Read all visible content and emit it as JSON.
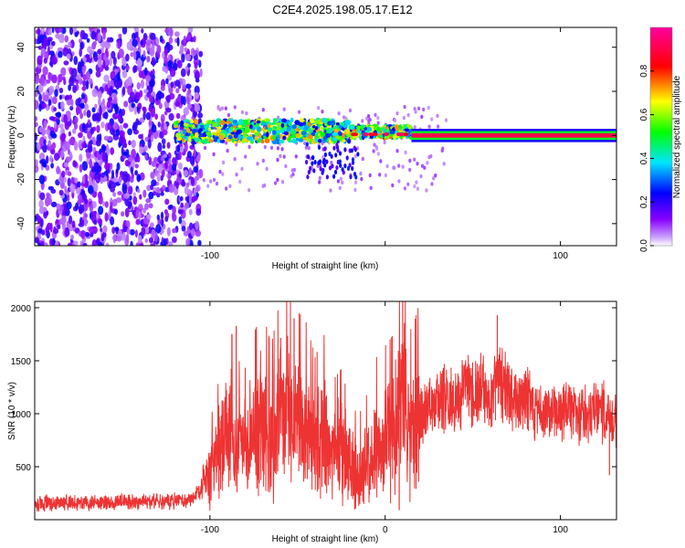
{
  "figure": {
    "title": "C2E4.2025.198.05.17.E12"
  },
  "chart_data": [
    {
      "type": "heatmap",
      "title": "C2E4.2025.198.05.17.E12",
      "xlabel": "Height of straight line (km)",
      "ylabel": "Frequency (Hz)",
      "xlim": [
        -200,
        132
      ],
      "ylim": [
        -50,
        49
      ],
      "xticks": [
        -100,
        0,
        100
      ],
      "xtick_labels": [
        "-100",
        "",
        "100"
      ],
      "yticks": [
        -40,
        -20,
        0,
        20,
        40
      ],
      "ytick_labels": [
        "-40",
        "-20",
        "0",
        "20",
        "40"
      ],
      "colorbar": {
        "label": "Normalized spectral amplitude",
        "range": [
          0,
          1
        ],
        "ticks": [
          0,
          0.2,
          0.4,
          0.6,
          0.8
        ],
        "tick_labels": [
          "0.0",
          "0.2",
          "0.4",
          "0.6",
          "0.8"
        ],
        "colormap": [
          "#ffffff",
          "#8a00ff",
          "#0000ff",
          "#00e5ff",
          "#00ff00",
          "#ffff00",
          "#ff0000",
          "#ff00a0"
        ]
      },
      "regions": [
        {
          "name": "noise",
          "x": [
            -200,
            -105
          ],
          "y": [
            -50,
            49
          ],
          "amplitude": [
            0.05,
            0.25
          ]
        },
        {
          "name": "signal band",
          "x": [
            -120,
            15
          ],
          "y": [
            -4,
            6
          ],
          "amplitude": [
            0.2,
            0.75
          ]
        },
        {
          "name": "carrier",
          "x": [
            15,
            132
          ],
          "y": [
            -1,
            1
          ],
          "amplitude": [
            0.85,
            1.0
          ]
        }
      ]
    },
    {
      "type": "line",
      "xlabel": "Height of straight line (km)",
      "ylabel": "SNR (10 * v/v)",
      "xlim": [
        -200,
        132
      ],
      "ylim": [
        0,
        2060
      ],
      "xticks": [
        -100,
        0,
        100
      ],
      "xtick_labels": [
        "-100",
        "0",
        "100"
      ],
      "yticks": [
        500,
        1000,
        1500,
        2000
      ],
      "ytick_labels": [
        "500",
        "1000",
        "1500",
        "2000"
      ],
      "color": "#ee3333",
      "series": [
        {
          "x": [
            -200,
            -190,
            -180,
            -170,
            -160,
            -150,
            -140,
            -130,
            -120,
            -110,
            -105,
            -100,
            -95,
            -90,
            -85,
            -80,
            -75,
            -70,
            -65,
            -60,
            -55,
            -50,
            -45,
            -40,
            -35,
            -30,
            -25,
            -20,
            -15,
            -10,
            -5,
            0,
            5,
            10,
            15,
            20,
            25,
            30,
            35,
            40,
            45,
            50,
            55,
            60,
            65,
            70,
            75,
            80,
            85,
            90,
            95,
            100,
            105,
            110,
            115,
            120,
            125,
            130
          ],
          "values": [
            150,
            160,
            155,
            165,
            160,
            170,
            165,
            175,
            180,
            200,
            280,
            420,
            600,
            900,
            700,
            650,
            800,
            900,
            750,
            950,
            1000,
            900,
            850,
            700,
            800,
            600,
            650,
            500,
            450,
            550,
            700,
            750,
            800,
            1100,
            800,
            950,
            1050,
            1100,
            1150,
            1050,
            1300,
            1200,
            1250,
            1050,
            1400,
            1200,
            1150,
            1200,
            1050,
            1000,
            1050,
            1000,
            1050,
            1000,
            980,
            1050,
            1000,
            950
          ]
        }
      ]
    }
  ]
}
